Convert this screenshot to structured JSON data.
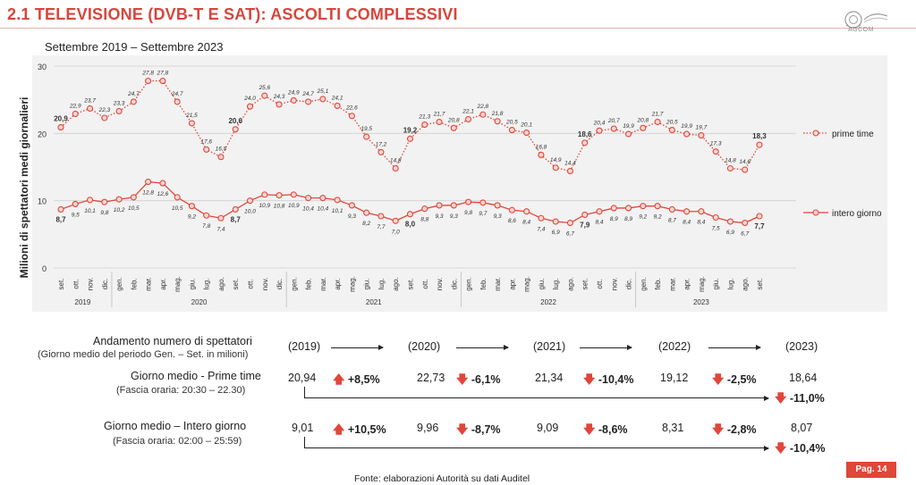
{
  "header": {
    "title": "2.1 TELEVISIONE (DVB-T E SAT): ASCOLTI COMPLESSIVI",
    "logo_text": "AGCOM"
  },
  "colors": {
    "accent": "#d5473c",
    "line": "#e0463a"
  },
  "chart_data": {
    "type": "line",
    "title": "Settembre 2019 – Settembre 2023",
    "ylabel": "Milioni di spettatori medi giornalieri",
    "ylim": [
      0,
      30
    ],
    "yticks": [
      "0",
      "10",
      "20",
      "30"
    ],
    "x": [
      "set.",
      "ott.",
      "nov.",
      "dic.",
      "gen.",
      "feb.",
      "mar.",
      "apr.",
      "mag.",
      "giu.",
      "lug.",
      "ago.",
      "set.",
      "ott.",
      "nov.",
      "dic.",
      "gen.",
      "feb.",
      "mar.",
      "apr.",
      "mag.",
      "giu.",
      "lug.",
      "ago.",
      "set.",
      "ott.",
      "nov.",
      "dic.",
      "gen.",
      "feb.",
      "mar.",
      "apr.",
      "mag.",
      "giu.",
      "lug.",
      "ago.",
      "set.",
      "ott.",
      "nov.",
      "dic.",
      "gen.",
      "feb.",
      "mar.",
      "apr.",
      "mag.",
      "giu.",
      "lug.",
      "ago.",
      "set."
    ],
    "years": [
      {
        "label": "2019",
        "start": 0,
        "end": 3
      },
      {
        "label": "2020",
        "start": 4,
        "end": 15
      },
      {
        "label": "2021",
        "start": 16,
        "end": 27
      },
      {
        "label": "2022",
        "start": 28,
        "end": 39
      },
      {
        "label": "2023",
        "start": 40,
        "end": 48
      }
    ],
    "series": [
      {
        "name": "prime time",
        "style": "dotted",
        "values": [
          20.9,
          22.9,
          23.7,
          22.3,
          23.3,
          24.7,
          27.8,
          27.8,
          24.7,
          21.5,
          17.6,
          16.5,
          20.6,
          24.0,
          25.6,
          24.3,
          24.9,
          24.7,
          25.1,
          24.1,
          22.6,
          19.5,
          17.2,
          14.8,
          19.2,
          21.3,
          21.7,
          20.8,
          22.1,
          22.8,
          21.8,
          20.5,
          20.1,
          16.8,
          14.9,
          14.4,
          18.6,
          20.4,
          20.7,
          19.9,
          20.8,
          21.7,
          20.5,
          19.9,
          19.7,
          17.3,
          14.8,
          14.6,
          18.3
        ],
        "labels": [
          "20,9",
          "22,9",
          "23,7",
          "22,3",
          "23,3",
          "24,7",
          "27,8",
          "27,8",
          "24,7",
          "21,5",
          "17,6",
          "16,5",
          "20,6",
          "24,0",
          "25,6",
          "24,3",
          "24,9",
          "24,7",
          "25,1",
          "24,1",
          "22,6",
          "19,5",
          "17,2",
          "14,8",
          "19,2",
          "21,3",
          "21,7",
          "20,8",
          "22,1",
          "22,8",
          "21,8",
          "20,5",
          "20,1",
          "16,8",
          "14,9",
          "14,4",
          "18,6",
          "20,4",
          "20,7",
          "19,9",
          "20,8",
          "21,7",
          "20,5",
          "19,9",
          "19,7",
          "17,3",
          "14,8",
          "14,6",
          "18,3"
        ]
      },
      {
        "name": "intero giorno",
        "style": "solid",
        "values": [
          8.7,
          9.5,
          10.1,
          9.8,
          10.2,
          10.5,
          12.8,
          12.6,
          10.5,
          9.2,
          7.8,
          7.4,
          8.7,
          10.0,
          10.9,
          10.8,
          10.9,
          10.4,
          10.4,
          10.1,
          9.3,
          8.2,
          7.7,
          7.0,
          8.0,
          8.8,
          9.3,
          9.3,
          9.8,
          9.7,
          9.3,
          8.6,
          8.4,
          7.4,
          6.9,
          6.7,
          7.9,
          8.4,
          8.9,
          8.9,
          9.2,
          9.2,
          8.7,
          8.4,
          8.4,
          7.5,
          6.9,
          6.7,
          7.7
        ],
        "labels": [
          "8,7",
          "9,5",
          "10,1",
          "9,8",
          "10,2",
          "10,5",
          "12,8",
          "12,6",
          "10,5",
          "9,2",
          "7,8",
          "7,4",
          "8,7",
          "10,0",
          "10,9",
          "10,8",
          "10,9",
          "10,4",
          "10,4",
          "10,1",
          "9,3",
          "8,2",
          "7,7",
          "7,0",
          "8,0",
          "8,8",
          "9,3",
          "9,3",
          "9,8",
          "9,7",
          "9,3",
          "8,6",
          "8,4",
          "7,4",
          "6,9",
          "6,7",
          "7,9",
          "8,4",
          "8,9",
          "8,9",
          "9,2",
          "9,2",
          "8,7",
          "8,4",
          "8,4",
          "7,5",
          "6,9",
          "6,7",
          "7,7"
        ]
      }
    ],
    "bold_points": [
      0,
      12,
      24,
      36,
      48
    ]
  },
  "table": {
    "header_label_1": "Andamento numero di spettatori",
    "header_label_2": "(Giorno medio del periodo Gen. – Set. in milioni)",
    "years": [
      "(2019)",
      "(2020)",
      "(2021)",
      "(2022)",
      "(2023)"
    ],
    "prime": {
      "label_1": "Giorno medio - Prime time",
      "label_2": "(Fascia oraria: 20:30 – 22.30)",
      "values": [
        "20,94",
        "22,73",
        "21,34",
        "19,12",
        "18,64"
      ],
      "changes": [
        "+8,5%",
        "-6,1%",
        "-10,4%",
        "-2,5%"
      ],
      "total": "-11,0%"
    },
    "day": {
      "label_1": "Giorno medio – Intero giorno",
      "label_2": "(Fascia oraria: 02:00 – 25:59)",
      "values": [
        "9,01",
        "9,96",
        "9,09",
        "8,31",
        "8,07"
      ],
      "changes": [
        "+10,5%",
        "-8,7%",
        "-8,6%",
        "-2,8%"
      ],
      "total": "-10,4%"
    }
  },
  "footer": {
    "source": "Fonte: elaborazioni Autorità su dati Auditel",
    "page": "Pag. 14"
  }
}
